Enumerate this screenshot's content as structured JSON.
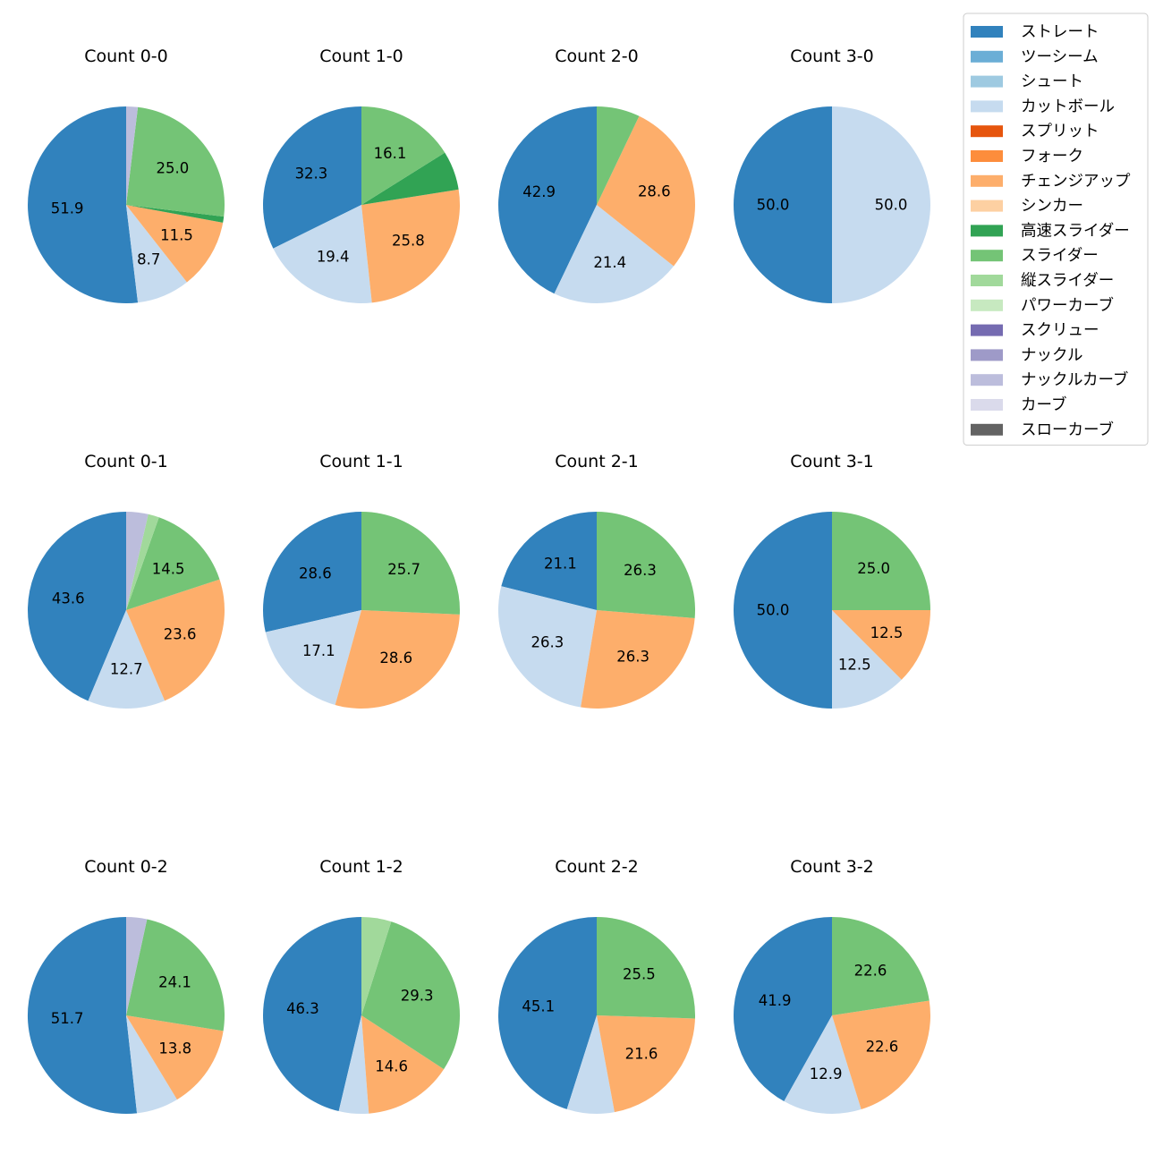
{
  "legend": {
    "items": [
      {
        "label": "ストレート",
        "color": "#3182bd"
      },
      {
        "label": "ツーシーム",
        "color": "#6baed6"
      },
      {
        "label": "シュート",
        "color": "#9ecae1"
      },
      {
        "label": "カットボール",
        "color": "#c6dbef"
      },
      {
        "label": "スプリット",
        "color": "#e6550d"
      },
      {
        "label": "フォーク",
        "color": "#fd8d3c"
      },
      {
        "label": "チェンジアップ",
        "color": "#fdae6b"
      },
      {
        "label": "シンカー",
        "color": "#fdd0a2"
      },
      {
        "label": "高速スライダー",
        "color": "#31a354"
      },
      {
        "label": "スライダー",
        "color": "#74c476"
      },
      {
        "label": "縦スライダー",
        "color": "#a1d99b"
      },
      {
        "label": "パワーカーブ",
        "color": "#c7e9c0"
      },
      {
        "label": "スクリュー",
        "color": "#756bb1"
      },
      {
        "label": "ナックル",
        "color": "#9e9ac8"
      },
      {
        "label": "ナックルカーブ",
        "color": "#bcbddc"
      },
      {
        "label": "カーブ",
        "color": "#dadaeb"
      },
      {
        "label": "スローカーブ",
        "color": "#636363"
      }
    ]
  },
  "chart_data": [
    {
      "type": "pie",
      "title": "Count 0-0",
      "slices": [
        {
          "pitch": "ストレート",
          "value": 51.9,
          "label": "51.9"
        },
        {
          "pitch": "カットボール",
          "value": 8.7,
          "label": "8.7"
        },
        {
          "pitch": "チェンジアップ",
          "value": 11.5,
          "label": "11.5"
        },
        {
          "pitch": "高速スライダー",
          "value": 1.0,
          "label": ""
        },
        {
          "pitch": "スライダー",
          "value": 25.0,
          "label": "25.0"
        },
        {
          "pitch": "ナックルカーブ",
          "value": 1.9,
          "label": ""
        }
      ]
    },
    {
      "type": "pie",
      "title": "Count 1-0",
      "slices": [
        {
          "pitch": "ストレート",
          "value": 32.3,
          "label": "32.3"
        },
        {
          "pitch": "カットボール",
          "value": 19.4,
          "label": "19.4"
        },
        {
          "pitch": "チェンジアップ",
          "value": 25.8,
          "label": "25.8"
        },
        {
          "pitch": "高速スライダー",
          "value": 6.4,
          "label": ""
        },
        {
          "pitch": "スライダー",
          "value": 16.1,
          "label": "16.1"
        }
      ]
    },
    {
      "type": "pie",
      "title": "Count 2-0",
      "slices": [
        {
          "pitch": "ストレート",
          "value": 42.9,
          "label": "42.9"
        },
        {
          "pitch": "カットボール",
          "value": 21.4,
          "label": "21.4"
        },
        {
          "pitch": "チェンジアップ",
          "value": 28.6,
          "label": "28.6"
        },
        {
          "pitch": "スライダー",
          "value": 7.1,
          "label": ""
        }
      ]
    },
    {
      "type": "pie",
      "title": "Count 3-0",
      "slices": [
        {
          "pitch": "ストレート",
          "value": 50.0,
          "label": "50.0"
        },
        {
          "pitch": "カットボール",
          "value": 50.0,
          "label": "50.0"
        }
      ]
    },
    {
      "type": "pie",
      "title": "Count 0-1",
      "slices": [
        {
          "pitch": "ストレート",
          "value": 43.6,
          "label": "43.6"
        },
        {
          "pitch": "カットボール",
          "value": 12.7,
          "label": "12.7"
        },
        {
          "pitch": "チェンジアップ",
          "value": 23.6,
          "label": "23.6"
        },
        {
          "pitch": "スライダー",
          "value": 14.5,
          "label": "14.5"
        },
        {
          "pitch": "縦スライダー",
          "value": 1.8,
          "label": ""
        },
        {
          "pitch": "ナックルカーブ",
          "value": 3.6,
          "label": ""
        }
      ]
    },
    {
      "type": "pie",
      "title": "Count 1-1",
      "slices": [
        {
          "pitch": "ストレート",
          "value": 28.6,
          "label": "28.6"
        },
        {
          "pitch": "カットボール",
          "value": 17.1,
          "label": "17.1"
        },
        {
          "pitch": "チェンジアップ",
          "value": 28.6,
          "label": "28.6"
        },
        {
          "pitch": "スライダー",
          "value": 25.7,
          "label": "25.7"
        }
      ]
    },
    {
      "type": "pie",
      "title": "Count 2-1",
      "slices": [
        {
          "pitch": "ストレート",
          "value": 21.1,
          "label": "21.1"
        },
        {
          "pitch": "カットボール",
          "value": 26.3,
          "label": "26.3"
        },
        {
          "pitch": "チェンジアップ",
          "value": 26.3,
          "label": "26.3"
        },
        {
          "pitch": "スライダー",
          "value": 26.3,
          "label": "26.3"
        }
      ]
    },
    {
      "type": "pie",
      "title": "Count 3-1",
      "slices": [
        {
          "pitch": "ストレート",
          "value": 50.0,
          "label": "50.0"
        },
        {
          "pitch": "カットボール",
          "value": 12.5,
          "label": "12.5"
        },
        {
          "pitch": "チェンジアップ",
          "value": 12.5,
          "label": "12.5"
        },
        {
          "pitch": "スライダー",
          "value": 25.0,
          "label": "25.0"
        }
      ]
    },
    {
      "type": "pie",
      "title": "Count 0-2",
      "slices": [
        {
          "pitch": "ストレート",
          "value": 51.7,
          "label": "51.7"
        },
        {
          "pitch": "カットボール",
          "value": 6.9,
          "label": ""
        },
        {
          "pitch": "チェンジアップ",
          "value": 13.8,
          "label": "13.8"
        },
        {
          "pitch": "スライダー",
          "value": 24.1,
          "label": "24.1"
        },
        {
          "pitch": "ナックルカーブ",
          "value": 3.4,
          "label": ""
        }
      ]
    },
    {
      "type": "pie",
      "title": "Count 1-2",
      "slices": [
        {
          "pitch": "ストレート",
          "value": 46.3,
          "label": "46.3"
        },
        {
          "pitch": "カットボール",
          "value": 4.9,
          "label": ""
        },
        {
          "pitch": "チェンジアップ",
          "value": 14.6,
          "label": "14.6"
        },
        {
          "pitch": "スライダー",
          "value": 29.3,
          "label": "29.3"
        },
        {
          "pitch": "縦スライダー",
          "value": 4.9,
          "label": ""
        }
      ]
    },
    {
      "type": "pie",
      "title": "Count 2-2",
      "slices": [
        {
          "pitch": "ストレート",
          "value": 45.1,
          "label": "45.1"
        },
        {
          "pitch": "カットボール",
          "value": 7.8,
          "label": ""
        },
        {
          "pitch": "チェンジアップ",
          "value": 21.6,
          "label": "21.6"
        },
        {
          "pitch": "スライダー",
          "value": 25.5,
          "label": "25.5"
        }
      ]
    },
    {
      "type": "pie",
      "title": "Count 3-2",
      "slices": [
        {
          "pitch": "ストレート",
          "value": 41.9,
          "label": "41.9"
        },
        {
          "pitch": "カットボール",
          "value": 12.9,
          "label": "12.9"
        },
        {
          "pitch": "チェンジアップ",
          "value": 22.6,
          "label": "22.6"
        },
        {
          "pitch": "スライダー",
          "value": 22.6,
          "label": "22.6"
        }
      ]
    }
  ]
}
